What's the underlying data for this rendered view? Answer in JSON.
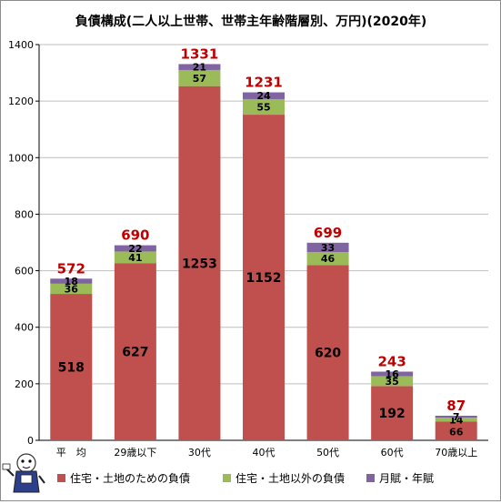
{
  "chart_data": {
    "type": "bar",
    "stacked": true,
    "title": "負債構成(二人以上世帯、世帯主年齢階層別、万円)(2020年)",
    "categories": [
      "平　均",
      "29歳以下",
      "30代",
      "40代",
      "50代",
      "60代",
      "70歳以上"
    ],
    "series": [
      {
        "name": "住宅・土地のための負債",
        "color": "#c0504d",
        "values": [
          518,
          627,
          1253,
          1152,
          620,
          192,
          66
        ]
      },
      {
        "name": "住宅・土地以外の負債",
        "color": "#9bbb59",
        "values": [
          36,
          41,
          57,
          55,
          46,
          35,
          14
        ]
      },
      {
        "name": "月賦・年賦",
        "color": "#8064a2",
        "values": [
          18,
          22,
          21,
          24,
          33,
          16,
          7
        ]
      }
    ],
    "totals": [
      572,
      690,
      1331,
      1231,
      699,
      243,
      87
    ],
    "total_color": "#c00000",
    "ylim": [
      0,
      1400
    ],
    "yticks": [
      0,
      200,
      400,
      600,
      800,
      1000,
      1200,
      1400
    ],
    "grid": true,
    "legend_position": "bottom",
    "xlabel": "",
    "ylabel": ""
  }
}
